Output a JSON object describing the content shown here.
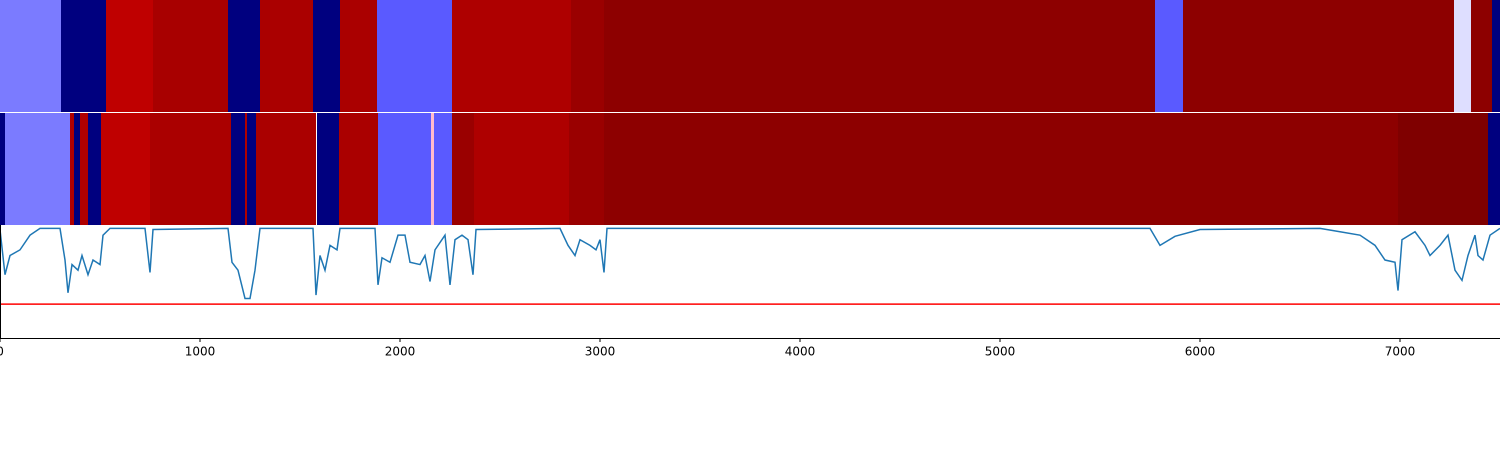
{
  "chart_data": [
    {
      "type": "segments",
      "xlim": [
        0,
        7500
      ],
      "segments": [
        {
          "start": 0,
          "end": 305,
          "color": "#7b7bff"
        },
        {
          "start": 305,
          "end": 530,
          "color": "#00007f"
        },
        {
          "start": 530,
          "end": 765,
          "color": "#bf0000"
        },
        {
          "start": 765,
          "end": 1140,
          "color": "#a80000"
        },
        {
          "start": 1140,
          "end": 1300,
          "color": "#00007f"
        },
        {
          "start": 1300,
          "end": 1565,
          "color": "#aa0000"
        },
        {
          "start": 1565,
          "end": 1700,
          "color": "#00007f"
        },
        {
          "start": 1700,
          "end": 1885,
          "color": "#aa0000"
        },
        {
          "start": 1885,
          "end": 2260,
          "color": "#5a5aff"
        },
        {
          "start": 2260,
          "end": 2855,
          "color": "#ae0000"
        },
        {
          "start": 2855,
          "end": 3020,
          "color": "#9a0000"
        },
        {
          "start": 3020,
          "end": 5775,
          "color": "#8d0000"
        },
        {
          "start": 5775,
          "end": 5915,
          "color": "#5a5aff"
        },
        {
          "start": 5915,
          "end": 7270,
          "color": "#8d0000"
        },
        {
          "start": 7270,
          "end": 7355,
          "color": "#dedeff"
        },
        {
          "start": 7355,
          "end": 7460,
          "color": "#8d0000"
        },
        {
          "start": 7460,
          "end": 7500,
          "color": "#00007f"
        }
      ]
    },
    {
      "type": "segments",
      "xlim": [
        0,
        7500
      ],
      "segments": [
        {
          "start": 0,
          "end": 25,
          "color": "#00007f"
        },
        {
          "start": 25,
          "end": 350,
          "color": "#7b7bff"
        },
        {
          "start": 350,
          "end": 370,
          "color": "#b00000"
        },
        {
          "start": 370,
          "end": 400,
          "color": "#00007f"
        },
        {
          "start": 400,
          "end": 440,
          "color": "#b00000"
        },
        {
          "start": 440,
          "end": 505,
          "color": "#00007f"
        },
        {
          "start": 505,
          "end": 750,
          "color": "#bf0000"
        },
        {
          "start": 750,
          "end": 1155,
          "color": "#aa0000"
        },
        {
          "start": 1155,
          "end": 1225,
          "color": "#00007f"
        },
        {
          "start": 1225,
          "end": 1235,
          "color": "#b00000"
        },
        {
          "start": 1235,
          "end": 1280,
          "color": "#00007f"
        },
        {
          "start": 1280,
          "end": 1580,
          "color": "#aa0000"
        },
        {
          "start": 1585,
          "end": 1695,
          "color": "#00007f"
        },
        {
          "start": 1695,
          "end": 1890,
          "color": "#aa0000"
        },
        {
          "start": 1890,
          "end": 2155,
          "color": "#5a5aff"
        },
        {
          "start": 2155,
          "end": 2170,
          "color": "#ffbbcc"
        },
        {
          "start": 2170,
          "end": 2260,
          "color": "#5a5aff"
        },
        {
          "start": 2260,
          "end": 2370,
          "color": "#9a0000"
        },
        {
          "start": 2370,
          "end": 2845,
          "color": "#ae0000"
        },
        {
          "start": 2845,
          "end": 3020,
          "color": "#9a0000"
        },
        {
          "start": 3020,
          "end": 6990,
          "color": "#8d0000"
        },
        {
          "start": 6990,
          "end": 7440,
          "color": "#7f0000"
        },
        {
          "start": 7440,
          "end": 7500,
          "color": "#00007f"
        }
      ]
    },
    {
      "type": "line",
      "xlim": [
        0,
        7500
      ],
      "ylim": [
        0,
        1
      ],
      "xticks": [
        0,
        1000,
        2000,
        3000,
        4000,
        5000,
        6000,
        7000
      ],
      "hline": {
        "value": 0.3,
        "color": "#ff0000"
      },
      "series": [
        {
          "color": "#1f77b4",
          "x": [
            0,
            25,
            50,
            100,
            150,
            200,
            300,
            325,
            340,
            360,
            390,
            410,
            440,
            465,
            500,
            515,
            550,
            725,
            750,
            765,
            1140,
            1160,
            1190,
            1225,
            1250,
            1275,
            1300,
            1565,
            1580,
            1600,
            1625,
            1650,
            1685,
            1700,
            1875,
            1890,
            1910,
            1950,
            1990,
            2025,
            2050,
            2100,
            2125,
            2150,
            2175,
            2225,
            2250,
            2275,
            2310,
            2340,
            2365,
            2380,
            2800,
            2840,
            2875,
            2900,
            2950,
            2980,
            3000,
            3020,
            3035,
            4500,
            5750,
            5800,
            5875,
            6000,
            6600,
            6700,
            6800,
            6875,
            6925,
            6975,
            6990,
            7010,
            7075,
            7125,
            7150,
            7200,
            7240,
            7275,
            7310,
            7340,
            7375,
            7390,
            7415,
            7450,
            7500
          ],
          "values": [
            0.96,
            0.56,
            0.73,
            0.78,
            0.91,
            0.97,
            0.97,
            0.69,
            0.4,
            0.65,
            0.6,
            0.73,
            0.56,
            0.69,
            0.65,
            0.91,
            0.97,
            0.97,
            0.58,
            0.96,
            0.97,
            0.67,
            0.6,
            0.35,
            0.35,
            0.6,
            0.97,
            0.97,
            0.38,
            0.73,
            0.6,
            0.82,
            0.78,
            0.97,
            0.97,
            0.47,
            0.71,
            0.67,
            0.91,
            0.91,
            0.67,
            0.65,
            0.73,
            0.5,
            0.78,
            0.91,
            0.47,
            0.87,
            0.91,
            0.87,
            0.56,
            0.96,
            0.97,
            0.82,
            0.73,
            0.87,
            0.82,
            0.78,
            0.87,
            0.58,
            0.97,
            0.97,
            0.97,
            0.82,
            0.9,
            0.96,
            0.97,
            0.94,
            0.91,
            0.82,
            0.69,
            0.67,
            0.42,
            0.87,
            0.94,
            0.82,
            0.73,
            0.82,
            0.91,
            0.6,
            0.51,
            0.73,
            0.91,
            0.73,
            0.69,
            0.91,
            0.97
          ]
        }
      ]
    }
  ]
}
